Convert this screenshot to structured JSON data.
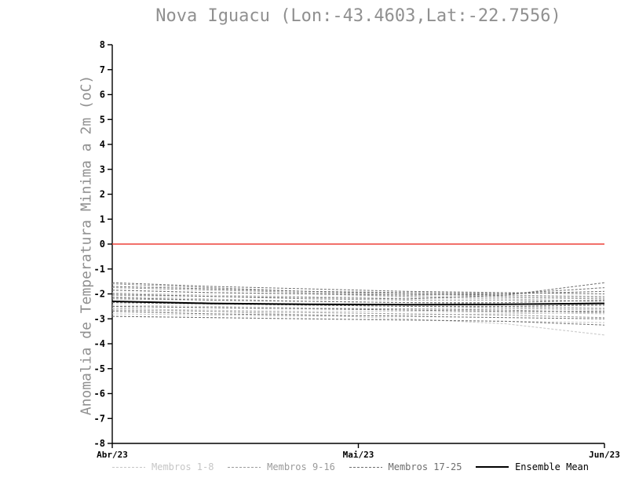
{
  "title": "Nova Iguacu (Lon:-43.4603,Lat:-22.7556)",
  "chart_data": {
    "type": "line",
    "title": "Nova Iguacu (Lon:-43.4603,Lat:-22.7556)",
    "xlabel": "",
    "ylabel": "Anomalia de Temperatura Minima a 2m (oC)",
    "ylim": [
      -8,
      8
    ],
    "ytick_step": 1,
    "grid": false,
    "legend_position": "bottom",
    "x": [
      0,
      0.2,
      0.4,
      0.6,
      0.8,
      1.0
    ],
    "x_ticks": [
      {
        "pos": 0.0,
        "label": "Abr/23"
      },
      {
        "pos": 0.5,
        "label": "Mai/23"
      },
      {
        "pos": 1.0,
        "label": "Jun/23"
      }
    ],
    "zero_line": {
      "y": 0,
      "color": "#ee4038"
    },
    "groups": [
      {
        "name": "Membros 1-8",
        "color": "#c6c6c6",
        "style": "dashed",
        "members": [
          [
            -2.55,
            -2.7,
            -2.85,
            -3.0,
            -3.2,
            -3.65
          ],
          [
            -2.9,
            -2.95,
            -3.0,
            -3.05,
            -3.1,
            -3.15
          ],
          [
            -2.8,
            -2.85,
            -2.9,
            -2.85,
            -2.8,
            -2.75
          ],
          [
            -2.6,
            -2.65,
            -2.7,
            -2.7,
            -2.75,
            -2.8
          ],
          [
            -2.45,
            -2.5,
            -2.55,
            -2.6,
            -2.6,
            -2.65
          ],
          [
            -2.3,
            -2.4,
            -2.45,
            -2.5,
            -2.5,
            -2.55
          ],
          [
            -2.1,
            -2.2,
            -2.3,
            -2.35,
            -2.4,
            -2.45
          ],
          [
            -1.95,
            -2.05,
            -2.1,
            -2.15,
            -2.2,
            -2.3
          ]
        ]
      },
      {
        "name": "Membros 9-16",
        "color": "#9b9b9b",
        "style": "dashed",
        "members": [
          [
            -1.6,
            -1.75,
            -1.9,
            -2.0,
            -2.05,
            -2.1
          ],
          [
            -1.75,
            -1.85,
            -1.95,
            -2.0,
            -2.1,
            -2.15
          ],
          [
            -1.85,
            -1.95,
            -2.0,
            -2.1,
            -2.15,
            -2.2
          ],
          [
            -2.05,
            -2.1,
            -2.2,
            -2.25,
            -2.25,
            -2.3
          ],
          [
            -2.2,
            -2.25,
            -2.3,
            -2.35,
            -2.4,
            -2.45
          ],
          [
            -2.35,
            -2.4,
            -2.45,
            -2.5,
            -2.55,
            -2.6
          ],
          [
            -2.5,
            -2.55,
            -2.6,
            -2.6,
            -2.65,
            -2.75
          ],
          [
            -2.65,
            -2.7,
            -2.75,
            -2.8,
            -2.85,
            -2.95
          ]
        ]
      },
      {
        "name": "Membros 17-25",
        "color": "#6e6e6e",
        "style": "dashed",
        "members": [
          [
            -1.55,
            -1.7,
            -1.8,
            -1.9,
            -1.95,
            -2.0
          ],
          [
            -1.7,
            -1.8,
            -1.9,
            -1.95,
            -2.0,
            -1.9
          ],
          [
            -1.85,
            -1.95,
            -2.0,
            -2.05,
            -2.0,
            -1.75
          ],
          [
            -2.0,
            -2.1,
            -2.15,
            -2.2,
            -2.05,
            -1.55
          ],
          [
            -2.15,
            -2.25,
            -2.3,
            -2.35,
            -2.35,
            -2.25
          ],
          [
            -2.35,
            -2.4,
            -2.45,
            -2.5,
            -2.5,
            -2.45
          ],
          [
            -2.5,
            -2.55,
            -2.6,
            -2.65,
            -2.7,
            -2.7
          ],
          [
            -2.7,
            -2.8,
            -2.85,
            -2.9,
            -2.95,
            -3.0
          ],
          [
            -2.9,
            -2.95,
            -3.0,
            -3.05,
            -3.1,
            -3.25
          ]
        ]
      }
    ],
    "mean": {
      "name": "Ensemble Mean",
      "color": "#000000",
      "style": "solid",
      "values": [
        -2.3,
        -2.38,
        -2.42,
        -2.43,
        -2.42,
        -2.38
      ]
    }
  },
  "legend": [
    {
      "label": "Membros 1-8",
      "color": "#c6c6c6",
      "dashed": true
    },
    {
      "label": "Membros 9-16",
      "color": "#9b9b9b",
      "dashed": true
    },
    {
      "label": "Membros 17-25",
      "color": "#6e6e6e",
      "dashed": true
    },
    {
      "label": "Ensemble Mean",
      "color": "#000000",
      "dashed": false
    }
  ]
}
